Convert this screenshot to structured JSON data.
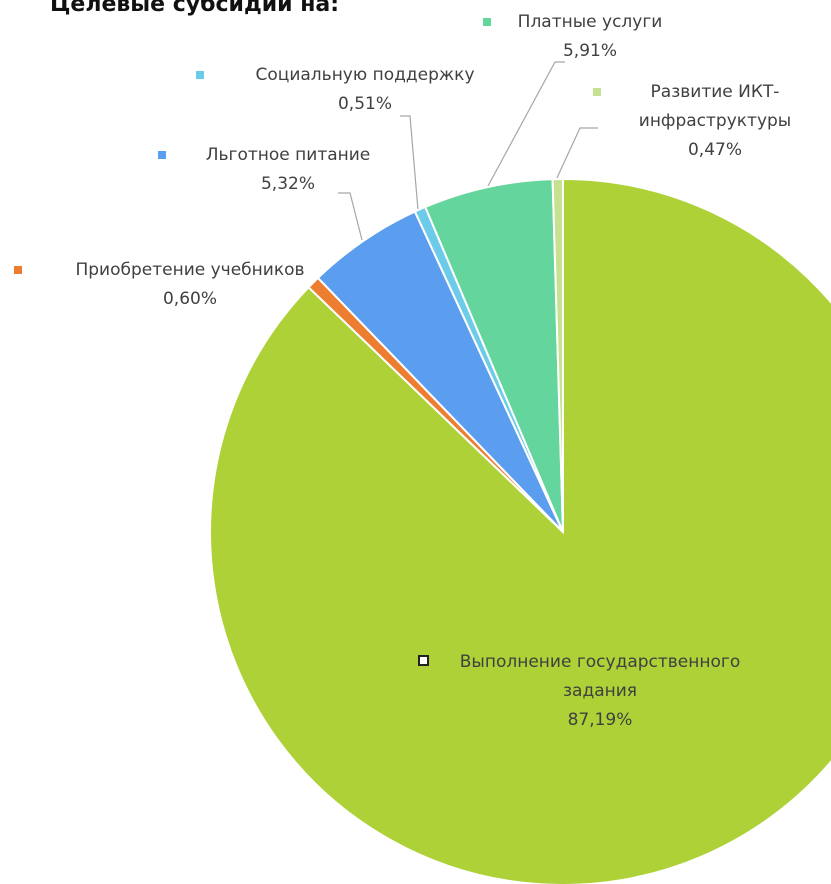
{
  "chart_data": {
    "type": "pie",
    "title": "Целевые субсидии на:",
    "categories": [
      "Выполнение государственного задания",
      "Приобретение учебников",
      "Льготное питание",
      "Социальную поддержку",
      "Платные услуги",
      "Развитие ИКТ-инфраструктуры"
    ],
    "values": [
      87.19,
      0.6,
      5.32,
      0.51,
      5.91,
      0.47
    ],
    "value_labels": [
      "87,19%",
      "0,60%",
      "5,32%",
      "0,51%",
      "5,91%",
      "0,47%"
    ],
    "colors": [
      "#add136",
      "#ed7d31",
      "#5b9ef0",
      "#6ccbe8",
      "#64d59c",
      "#c6e290"
    ]
  }
}
